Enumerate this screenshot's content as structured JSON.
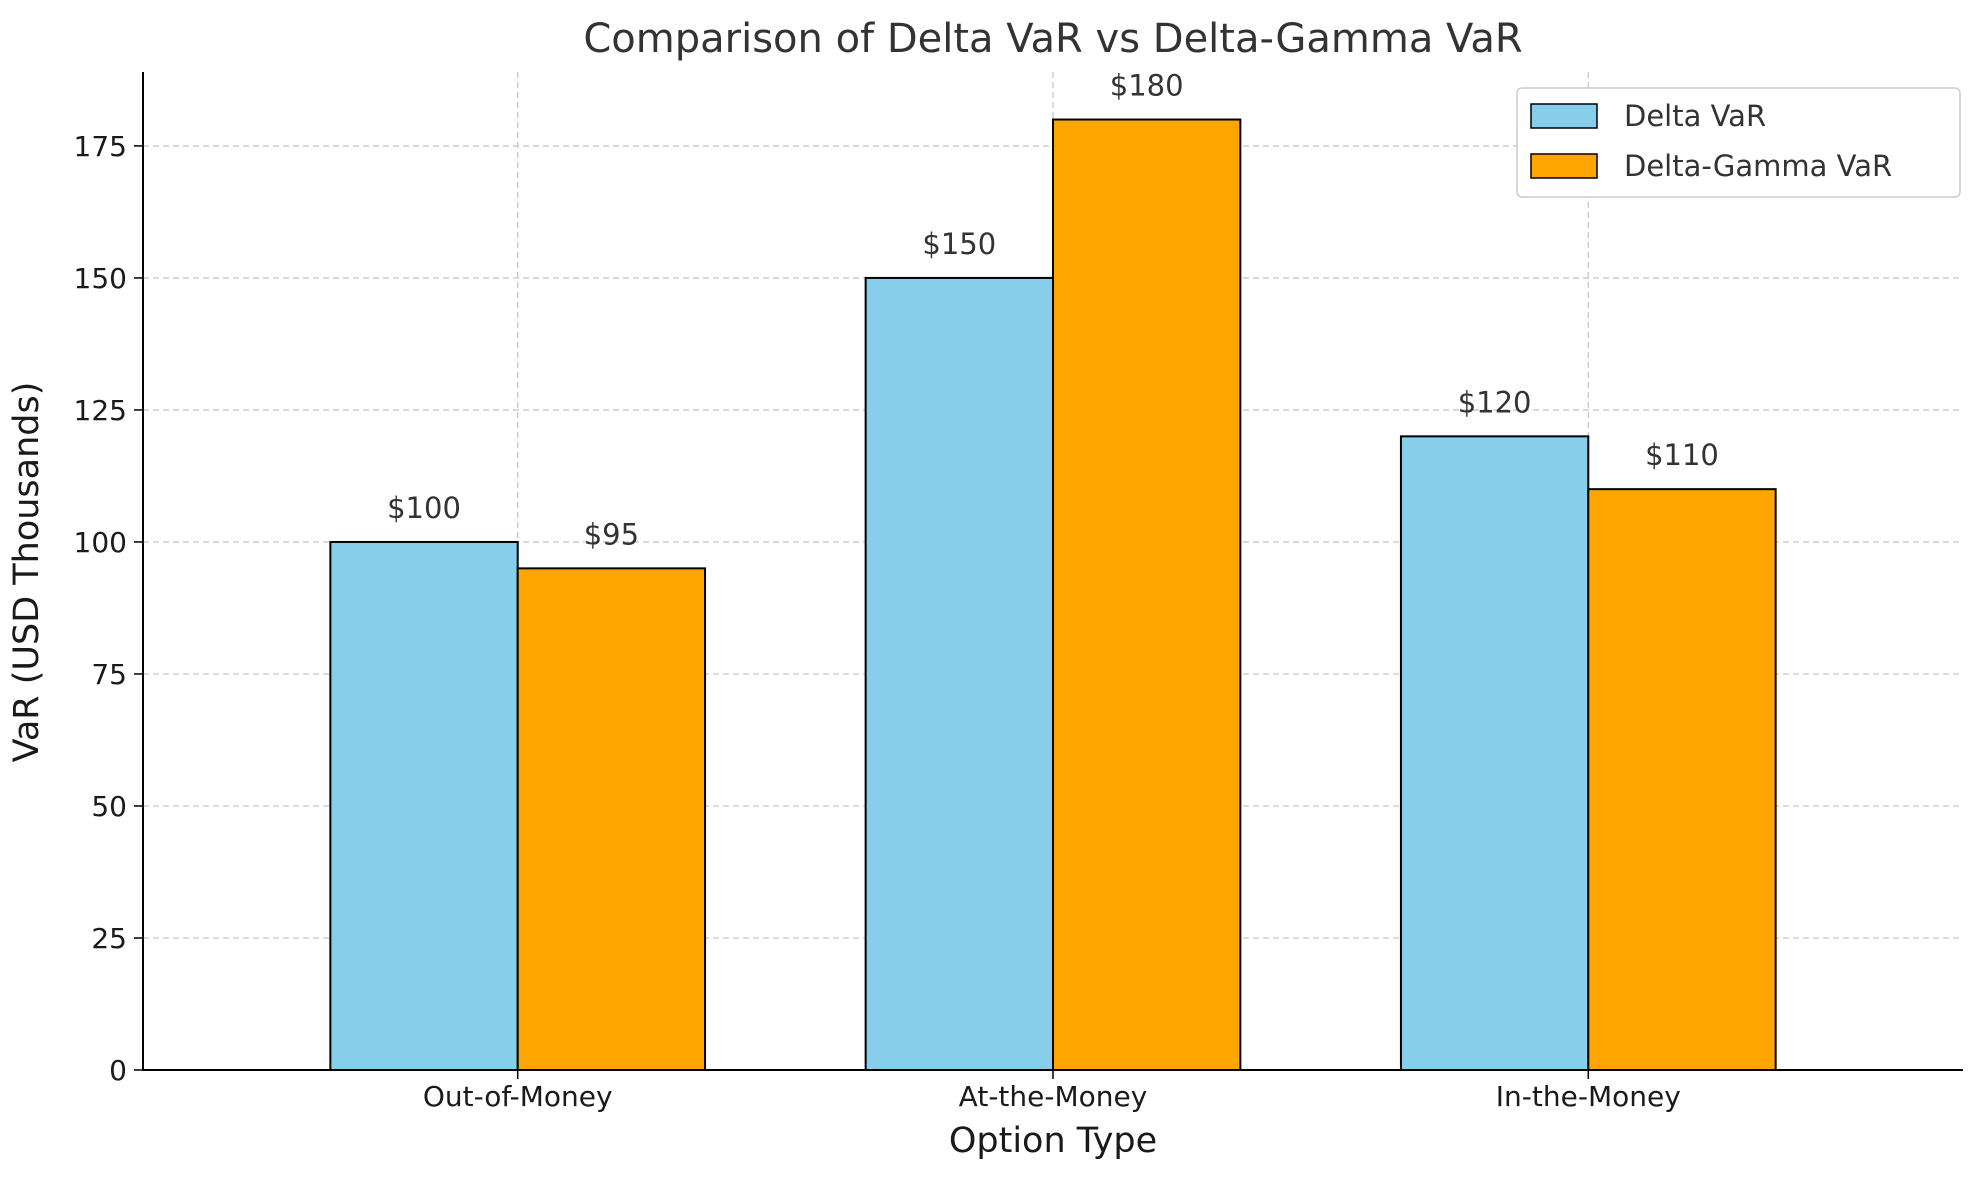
{
  "chart_data": {
    "type": "bar",
    "title": "Comparison of Delta VaR vs Delta-Gamma VaR",
    "xlabel": "Option Type",
    "ylabel": "VaR (USD Thousands)",
    "categories": [
      "Out-of-Money",
      "At-the-Money",
      "In-the-Money"
    ],
    "series": [
      {
        "name": "Delta VaR",
        "values": [
          100,
          150,
          120
        ],
        "labels": [
          "$100",
          "$150",
          "$120"
        ],
        "color": "#87CEEB"
      },
      {
        "name": "Delta-Gamma VaR",
        "values": [
          95,
          180,
          110
        ],
        "labels": [
          "$95",
          "$180",
          "$110"
        ],
        "color": "#FFA500"
      }
    ],
    "ylim": [
      0,
      189
    ],
    "yticks": [
      0,
      25,
      50,
      75,
      100,
      125,
      150,
      175
    ],
    "grid": true,
    "legend_position": "top-right",
    "edge_color": "#000000"
  }
}
